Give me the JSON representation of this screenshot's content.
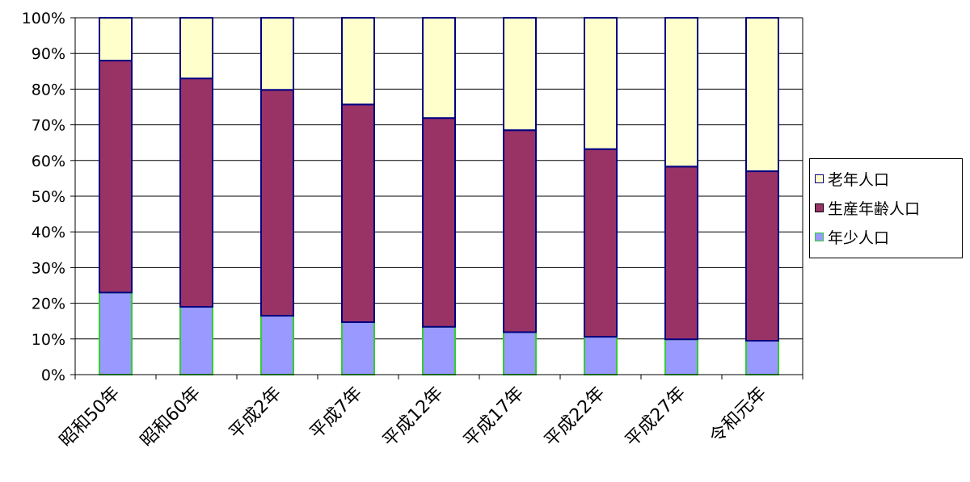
{
  "chart_data": {
    "type": "bar",
    "stacked": "percent",
    "categories": [
      "昭和50年",
      "昭和60年",
      "平成2年",
      "平成7年",
      "平成12年",
      "平成17年",
      "平成22年",
      "平成27年",
      "令和元年"
    ],
    "y_ticks": [
      "0%",
      "10%",
      "20%",
      "30%",
      "40%",
      "50%",
      "60%",
      "70%",
      "80%",
      "90%",
      "100%"
    ],
    "ylim": [
      0,
      100
    ],
    "grid": true,
    "legend_position": "right",
    "series": [
      {
        "name": "年少人口",
        "values": [
          23,
          19,
          16.5,
          14.7,
          13.4,
          11.9,
          10.6,
          9.9,
          9.5
        ],
        "color": "#9999ff",
        "edge": "#33cc33"
      },
      {
        "name": "生産年齢人口",
        "values": [
          65,
          64,
          63.3,
          61,
          58.5,
          56.6,
          52.6,
          48.4,
          47.5
        ],
        "color": "#993366",
        "edge": "#000080"
      },
      {
        "name": "老年人口",
        "values": [
          12,
          17,
          20.2,
          24.3,
          28.1,
          31.5,
          36.8,
          41.7,
          43
        ],
        "color": "#ffffcc",
        "edge": "#000080"
      }
    ],
    "legend_order": [
      2,
      1,
      0
    ]
  }
}
